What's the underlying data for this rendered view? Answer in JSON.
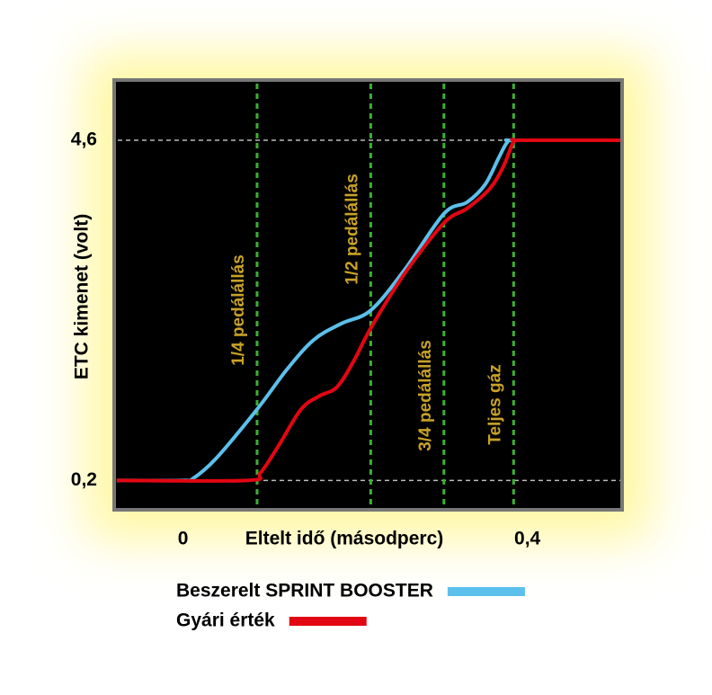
{
  "chart_data": {
    "type": "line",
    "x_label": "Eltelt idő (másodperc)",
    "y_label": "ETC kimenet (volt)",
    "xlim": [
      -0.08,
      0.51
    ],
    "ylim": [
      -0.18,
      5.38
    ],
    "xticks": [
      {
        "value": 0,
        "label": "0"
      },
      {
        "value": 0.4,
        "label": "0,4"
      }
    ],
    "yticks": [
      {
        "value": 0.2,
        "label": "0,2"
      },
      {
        "value": 4.6,
        "label": "4,6"
      }
    ],
    "grid": true,
    "annotations": [
      {
        "x": 0.086,
        "label": "1/4 pedálállás"
      },
      {
        "x": 0.218,
        "label": "1/2 pedálállás"
      },
      {
        "x": 0.303,
        "label": "3/4 pedálállás"
      },
      {
        "x": 0.384,
        "label": "Teljes gáz"
      }
    ],
    "series": [
      {
        "name": "Beszerelt SPRINT BOOSTER",
        "color": "#5bc0eb",
        "x": [
          -0.077,
          0,
          0.011,
          0.038,
          0.086,
          0.121,
          0.152,
          0.184,
          0.218,
          0.257,
          0.303,
          0.33,
          0.351,
          0.367,
          0.377,
          0.387,
          0.508
        ],
        "values": [
          0.2,
          0.2,
          0.22,
          0.48,
          1.12,
          1.64,
          2.02,
          2.23,
          2.4,
          2.92,
          3.65,
          3.8,
          4.03,
          4.38,
          4.58,
          4.6,
          4.6
        ]
      },
      {
        "name": "Gyári érték",
        "color": "#e30613",
        "x": [
          -0.077,
          0.074,
          0.09,
          0.111,
          0.137,
          0.158,
          0.179,
          0.199,
          0.218,
          0.257,
          0.303,
          0.33,
          0.356,
          0.372,
          0.384,
          0.393,
          0.508
        ],
        "values": [
          0.2,
          0.2,
          0.3,
          0.65,
          1.12,
          1.29,
          1.41,
          1.76,
          2.17,
          2.87,
          3.53,
          3.72,
          3.97,
          4.26,
          4.58,
          4.6,
          4.6
        ]
      }
    ]
  }
}
